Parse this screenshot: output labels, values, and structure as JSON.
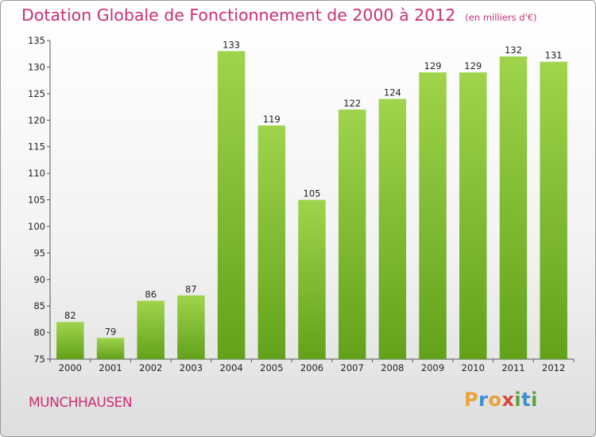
{
  "title": "Dotation Globale de Fonctionnement de 2000 à 2012",
  "unit_note": "(en milliers d'€)",
  "commune": "MUNCHHAUSEN",
  "logo_text": "Proxiti",
  "colors": {
    "title": "#cc2e73",
    "bar_light": "#9fd44c",
    "bar_dark": "#62a21a",
    "axis": "#555555"
  },
  "chart_data": {
    "type": "bar",
    "categories": [
      "2000",
      "2001",
      "2002",
      "2003",
      "2004",
      "2005",
      "2006",
      "2007",
      "2008",
      "2009",
      "2010",
      "2011",
      "2012"
    ],
    "values": [
      82,
      79,
      86,
      87,
      133,
      119,
      105,
      122,
      124,
      129,
      129,
      132,
      131
    ],
    "ylim": [
      75,
      135
    ],
    "yticks": [
      75,
      80,
      85,
      90,
      95,
      100,
      105,
      110,
      115,
      120,
      125,
      130,
      135
    ],
    "grid": false,
    "data_labels": true
  }
}
